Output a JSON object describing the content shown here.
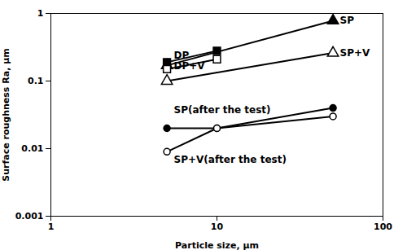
{
  "chart_data": {
    "type": "line",
    "log": true,
    "grid": false,
    "xlabel": "Particle size, μm",
    "ylabel": "Surface roughness Ra, μm",
    "xlim": [
      1,
      100
    ],
    "ylim": [
      0.001,
      1
    ],
    "xticks": [
      1,
      10,
      100
    ],
    "yticks": [
      0.001,
      0.01,
      0.1,
      1
    ],
    "series": [
      {
        "name": "SP",
        "x": [
          5,
          50
        ],
        "values": [
          0.17,
          0.78
        ],
        "color": "black",
        "marker": "filled triangle"
      },
      {
        "name": "DP",
        "x": [
          5,
          10
        ],
        "values": [
          0.19,
          0.28
        ],
        "color": "black",
        "marker": "filled square"
      },
      {
        "name": "DP+V",
        "x": [
          5,
          10
        ],
        "values": [
          0.15,
          0.21
        ],
        "color": "black",
        "marker": "open square"
      },
      {
        "name": "SP+V",
        "x": [
          5,
          50
        ],
        "values": [
          0.1,
          0.26
        ],
        "color": "black",
        "marker": "open triangle"
      },
      {
        "name": "SP(after the test)",
        "x": [
          5,
          10,
          50
        ],
        "values": [
          0.02,
          0.02,
          0.04
        ],
        "color": "black",
        "marker": "filled circle"
      },
      {
        "name": "SP+V(after the test)",
        "x": [
          5,
          10,
          50
        ],
        "values": [
          0.009,
          0.02,
          0.03
        ],
        "color": "black",
        "marker": "open circle"
      }
    ],
    "annotations": [
      {
        "text": "DP",
        "x": 5.5,
        "y": 0.215
      },
      {
        "text": "DP+V",
        "x": 5.5,
        "y": 0.148
      },
      {
        "text": "SP",
        "x": 55,
        "y": 0.7
      },
      {
        "text": "SP+V",
        "x": 55,
        "y": 0.23
      },
      {
        "text": "SP(after the test)",
        "x": 5.5,
        "y": 0.033
      },
      {
        "text": "SP+V(after the test)",
        "x": 5.5,
        "y": 0.0062
      }
    ]
  }
}
